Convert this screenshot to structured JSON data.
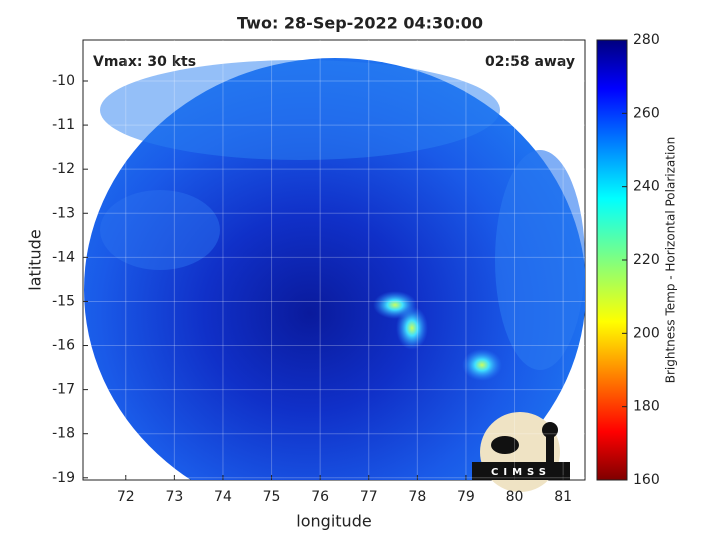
{
  "chart_data": {
    "type": "image",
    "title": "Two: 28-Sep-2022 04:30:00",
    "annotations": [
      "Vmax: 30 kts",
      "02:58 away"
    ],
    "x_label": "longitude",
    "y_label": "latitude",
    "xlim": [
      71.12,
      81.45
    ],
    "xticks": [
      72,
      73,
      74,
      75,
      76,
      77,
      78,
      79,
      80,
      81
    ],
    "ylim": [
      -19.05,
      -9.07
    ],
    "yticks": [
      -19,
      -18,
      -17,
      -16,
      -15,
      -14,
      -13,
      -12,
      -11,
      -10
    ],
    "grid": true,
    "colorbar": {
      "label": "Brightness Temp - Horizontal Polarization",
      "lim": [
        160,
        280
      ],
      "ticks": [
        160,
        180,
        200,
        220,
        240,
        260,
        280
      ]
    },
    "logo": "CIMSS"
  }
}
